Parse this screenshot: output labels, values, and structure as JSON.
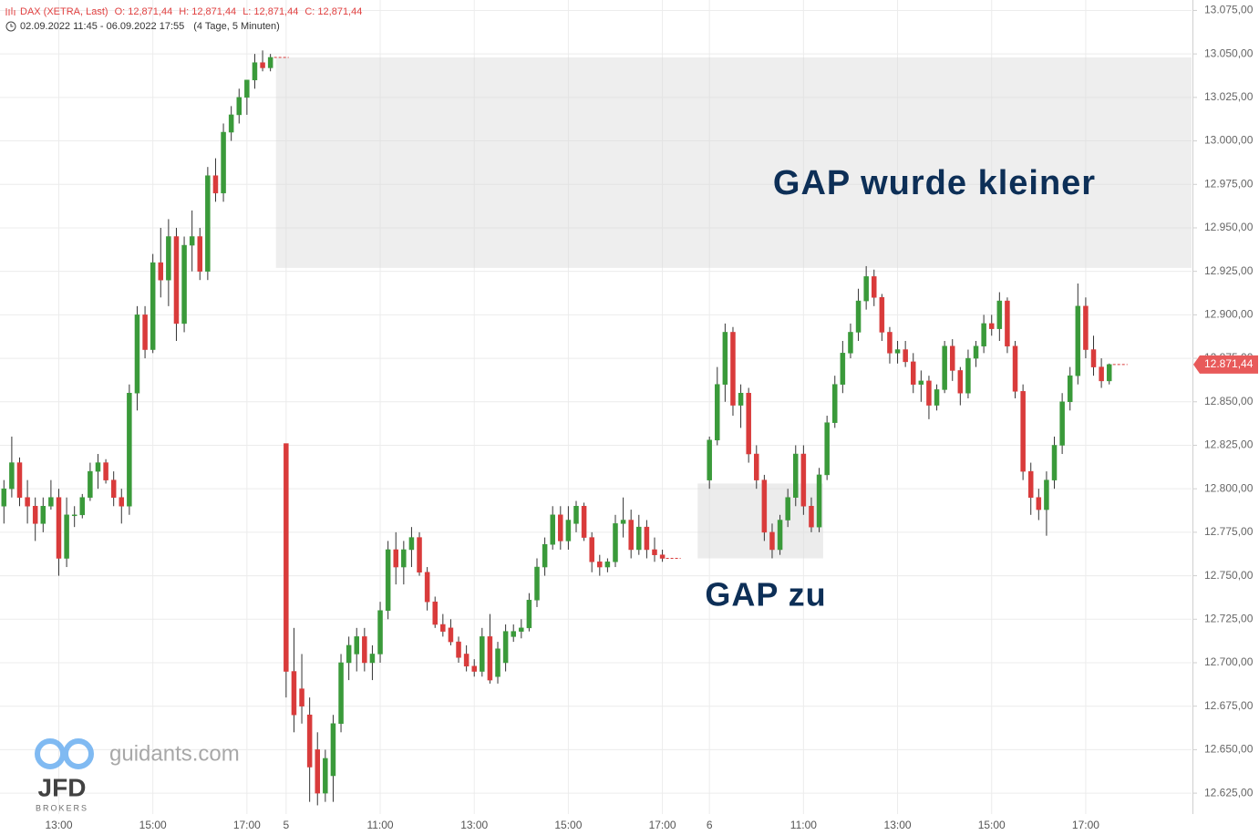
{
  "header": {
    "title": "DAX (XETRA, Last)",
    "ohlc": [
      "O: 12,871,44",
      "H: 12,871,44",
      "L: 12,871,44",
      "C: 12,871,44"
    ],
    "range": "02.09.2022 11:45 - 06.09.2022 17:55",
    "span": "(4 Tage, 5 Minuten)"
  },
  "chart_data": {
    "type": "candlestick",
    "xlim": [
      -0.5,
      151.5
    ],
    "ylim": [
      12613,
      13081
    ],
    "xticks": [
      {
        "value": 7,
        "label": "13:00"
      },
      {
        "value": 19,
        "label": "15:00"
      },
      {
        "value": 31,
        "label": "17:00"
      },
      {
        "value": 36,
        "label": "5"
      },
      {
        "value": 48,
        "label": "11:00"
      },
      {
        "value": 60,
        "label": "13:00"
      },
      {
        "value": 72,
        "label": "15:00"
      },
      {
        "value": 84,
        "label": "17:00"
      },
      {
        "value": 90,
        "label": "6"
      },
      {
        "value": 102,
        "label": "11:00"
      },
      {
        "value": 114,
        "label": "13:00"
      },
      {
        "value": 126,
        "label": "15:00"
      },
      {
        "value": 138,
        "label": "17:00"
      }
    ],
    "yticks": [
      {
        "value": 12625,
        "label": "12.625,00"
      },
      {
        "value": 12650,
        "label": "12.650,00"
      },
      {
        "value": 12675,
        "label": "12.675,00"
      },
      {
        "value": 12700,
        "label": "12.700,00"
      },
      {
        "value": 12725,
        "label": "12.725,00"
      },
      {
        "value": 12750,
        "label": "12.750,00"
      },
      {
        "value": 12775,
        "label": "12.775,00"
      },
      {
        "value": 12800,
        "label": "12.800,00"
      },
      {
        "value": 12825,
        "label": "12.825,00"
      },
      {
        "value": 12850,
        "label": "12.850,00"
      },
      {
        "value": 12875,
        "label": "12.875,00"
      },
      {
        "value": 12900,
        "label": "12.900,00"
      },
      {
        "value": 12925,
        "label": "12.925,00"
      },
      {
        "value": 12950,
        "label": "12.950,00"
      },
      {
        "value": 12975,
        "label": "12.975,00"
      },
      {
        "value": 13000,
        "label": "13.000,00"
      },
      {
        "value": 13025,
        "label": "13.025,00"
      },
      {
        "value": 13050,
        "label": "13.050,00"
      },
      {
        "value": 13075,
        "label": "13.075,00"
      }
    ],
    "grid": true,
    "up_color": "#3a9a3a",
    "down_color": "#d93b3b",
    "candles": {
      "x": [
        0,
        1,
        2,
        3,
        4,
        5,
        6,
        7,
        8,
        9,
        10,
        11,
        12,
        13,
        14,
        15,
        16,
        17,
        18,
        19,
        20,
        21,
        22,
        23,
        24,
        25,
        26,
        27,
        28,
        29,
        30,
        31,
        32,
        33,
        34,
        36,
        37,
        38,
        39,
        40,
        41,
        42,
        43,
        44,
        45,
        46,
        47,
        48,
        49,
        50,
        51,
        52,
        53,
        54,
        55,
        56,
        57,
        58,
        59,
        60,
        61,
        62,
        63,
        64,
        65,
        66,
        67,
        68,
        69,
        70,
        71,
        72,
        73,
        74,
        75,
        76,
        77,
        78,
        79,
        80,
        81,
        82,
        83,
        84,
        90,
        91,
        92,
        93,
        94,
        95,
        96,
        97,
        98,
        99,
        100,
        101,
        102,
        103,
        104,
        105,
        106,
        107,
        108,
        109,
        110,
        111,
        112,
        113,
        114,
        115,
        116,
        117,
        118,
        119,
        120,
        121,
        122,
        123,
        124,
        125,
        126,
        127,
        128,
        129,
        130,
        131,
        132,
        133,
        134,
        135,
        136,
        137,
        138,
        139,
        140,
        141
      ],
      "open": [
        12790,
        12800,
        12815,
        12795,
        12790,
        12780,
        12790,
        12795,
        12760,
        12785,
        12785,
        12795,
        12810,
        12815,
        12805,
        12795,
        12790,
        12855,
        12900,
        12880,
        12930,
        12920,
        12945,
        12895,
        12940,
        12945,
        12925,
        12980,
        12970,
        13005,
        13015,
        13025,
        13035,
        13045,
        13042,
        12826,
        12695,
        12685,
        12670,
        12650,
        12625,
        12635,
        12665,
        12700,
        12705,
        12715,
        12700,
        12705,
        12730,
        12765,
        12755,
        12765,
        12772,
        12752,
        12735,
        12722,
        12720,
        12712,
        12705,
        12698,
        12695,
        12715,
        12692,
        12700,
        12715,
        12718,
        12720,
        12736,
        12755,
        12768,
        12785,
        12770,
        12780,
        12790,
        12772,
        12758,
        12755,
        12758,
        12780,
        12782,
        12765,
        12778,
        12765,
        12762,
        12805,
        12828,
        12860,
        12890,
        12848,
        12855,
        12820,
        12805,
        12775,
        12765,
        12782,
        12795,
        12820,
        12790,
        12778,
        12808,
        12838,
        12860,
        12878,
        12890,
        12908,
        12922,
        12910,
        12890,
        12878,
        12880,
        12873,
        12860,
        12862,
        12848,
        12857,
        12882,
        12868,
        12855,
        12875,
        12882,
        12895,
        12892,
        12908,
        12882,
        12856,
        12810,
        12795,
        12788,
        12805,
        12825,
        12850,
        12865,
        12905,
        12880,
        12870,
        12862
      ],
      "high": [
        12805,
        12830,
        12818,
        12805,
        12795,
        12795,
        12805,
        12800,
        12795,
        12790,
        12797,
        12815,
        12820,
        12817,
        12810,
        12800,
        12860,
        12905,
        12905,
        12935,
        12950,
        12955,
        12950,
        12945,
        12960,
        12950,
        12985,
        12990,
        13010,
        13020,
        13030,
        13035,
        13050,
        13052,
        13050,
        12826,
        12720,
        12705,
        12680,
        12660,
        12650,
        12670,
        12705,
        12715,
        12720,
        12720,
        12710,
        12735,
        12770,
        12775,
        12770,
        12778,
        12775,
        12755,
        12738,
        12728,
        12725,
        12715,
        12710,
        12702,
        12720,
        12728,
        12712,
        12722,
        12722,
        12725,
        12740,
        12760,
        12772,
        12790,
        12790,
        12790,
        12793,
        12792,
        12775,
        12762,
        12760,
        12785,
        12795,
        12788,
        12785,
        12782,
        12772,
        12765,
        12830,
        12870,
        12895,
        12893,
        12860,
        12858,
        12825,
        12808,
        12780,
        12785,
        12800,
        12825,
        12825,
        12795,
        12812,
        12842,
        12865,
        12885,
        12895,
        12915,
        12928,
        12926,
        12912,
        12893,
        12885,
        12885,
        12878,
        12868,
        12865,
        12860,
        12885,
        12886,
        12870,
        12880,
        12885,
        12900,
        12900,
        12913,
        12910,
        12885,
        12860,
        12815,
        12800,
        12810,
        12830,
        12855,
        12870,
        12918,
        12910,
        12888,
        12875,
        12872
      ],
      "low": [
        12780,
        12795,
        12790,
        12780,
        12770,
        12775,
        12788,
        12750,
        12755,
        12778,
        12783,
        12793,
        12800,
        12803,
        12790,
        12780,
        12785,
        12845,
        12875,
        12878,
        12910,
        12905,
        12885,
        12890,
        12925,
        12920,
        12920,
        12965,
        12965,
        13000,
        13010,
        13015,
        13030,
        13040,
        13040,
        12680,
        12660,
        12665,
        12620,
        12618,
        12620,
        12620,
        12660,
        12690,
        12695,
        12695,
        12690,
        12700,
        12725,
        12745,
        12745,
        12755,
        12750,
        12730,
        12720,
        12715,
        12710,
        12700,
        12695,
        12692,
        12692,
        12688,
        12688,
        12695,
        12712,
        12714,
        12718,
        12732,
        12750,
        12765,
        12765,
        12765,
        12775,
        12770,
        12752,
        12750,
        12752,
        12755,
        12772,
        12760,
        12762,
        12760,
        12758,
        12758,
        12800,
        12825,
        12850,
        12842,
        12835,
        12815,
        12800,
        12770,
        12760,
        12762,
        12778,
        12790,
        12785,
        12775,
        12775,
        12805,
        12835,
        12855,
        12875,
        12885,
        12903,
        12905,
        12885,
        12872,
        12872,
        12870,
        12855,
        12850,
        12840,
        12845,
        12855,
        12862,
        12848,
        12852,
        12870,
        12878,
        12888,
        12885,
        12878,
        12852,
        12805,
        12785,
        12782,
        12773,
        12800,
        12820,
        12845,
        12860,
        12875,
        12865,
        12858,
        12860
      ],
      "close": [
        12800,
        12815,
        12795,
        12790,
        12780,
        12790,
        12795,
        12760,
        12785,
        12785,
        12795,
        12810,
        12815,
        12805,
        12795,
        12790,
        12855,
        12900,
        12880,
        12930,
        12920,
        12945,
        12895,
        12940,
        12945,
        12925,
        12980,
        12970,
        13005,
        13015,
        13025,
        13035,
        13045,
        13042,
        13048,
        12695,
        12670,
        12675,
        12640,
        12625,
        12645,
        12665,
        12700,
        12710,
        12715,
        12700,
        12705,
        12730,
        12765,
        12755,
        12765,
        12772,
        12752,
        12735,
        12722,
        12718,
        12712,
        12703,
        12698,
        12695,
        12715,
        12690,
        12708,
        12718,
        12718,
        12720,
        12736,
        12755,
        12768,
        12785,
        12770,
        12782,
        12790,
        12772,
        12758,
        12755,
        12758,
        12780,
        12782,
        12765,
        12778,
        12765,
        12762,
        12760,
        12828,
        12860,
        12890,
        12848,
        12855,
        12820,
        12805,
        12775,
        12765,
        12782,
        12795,
        12820,
        12790,
        12778,
        12808,
        12838,
        12860,
        12878,
        12890,
        12908,
        12922,
        12910,
        12890,
        12878,
        12880,
        12873,
        12860,
        12862,
        12848,
        12857,
        12882,
        12868,
        12855,
        12875,
        12882,
        12895,
        12892,
        12908,
        12882,
        12856,
        12810,
        12795,
        12788,
        12805,
        12825,
        12850,
        12865,
        12905,
        12880,
        12870,
        12862,
        12871.44
      ]
    },
    "zones": [
      {
        "label": "GAP wurde kleiner",
        "x": [
          34.7,
          151.5
        ],
        "y": [
          12927,
          13048
        ]
      },
      {
        "label": "GAP zu",
        "x": [
          88.5,
          104.5
        ],
        "y": [
          12760,
          12803
        ]
      }
    ],
    "last_price": {
      "value": 12871.44,
      "label": "12.871,44"
    }
  },
  "watermark": {
    "site": "guidants.com",
    "brand": "JFD",
    "sub": "BROKERS"
  }
}
